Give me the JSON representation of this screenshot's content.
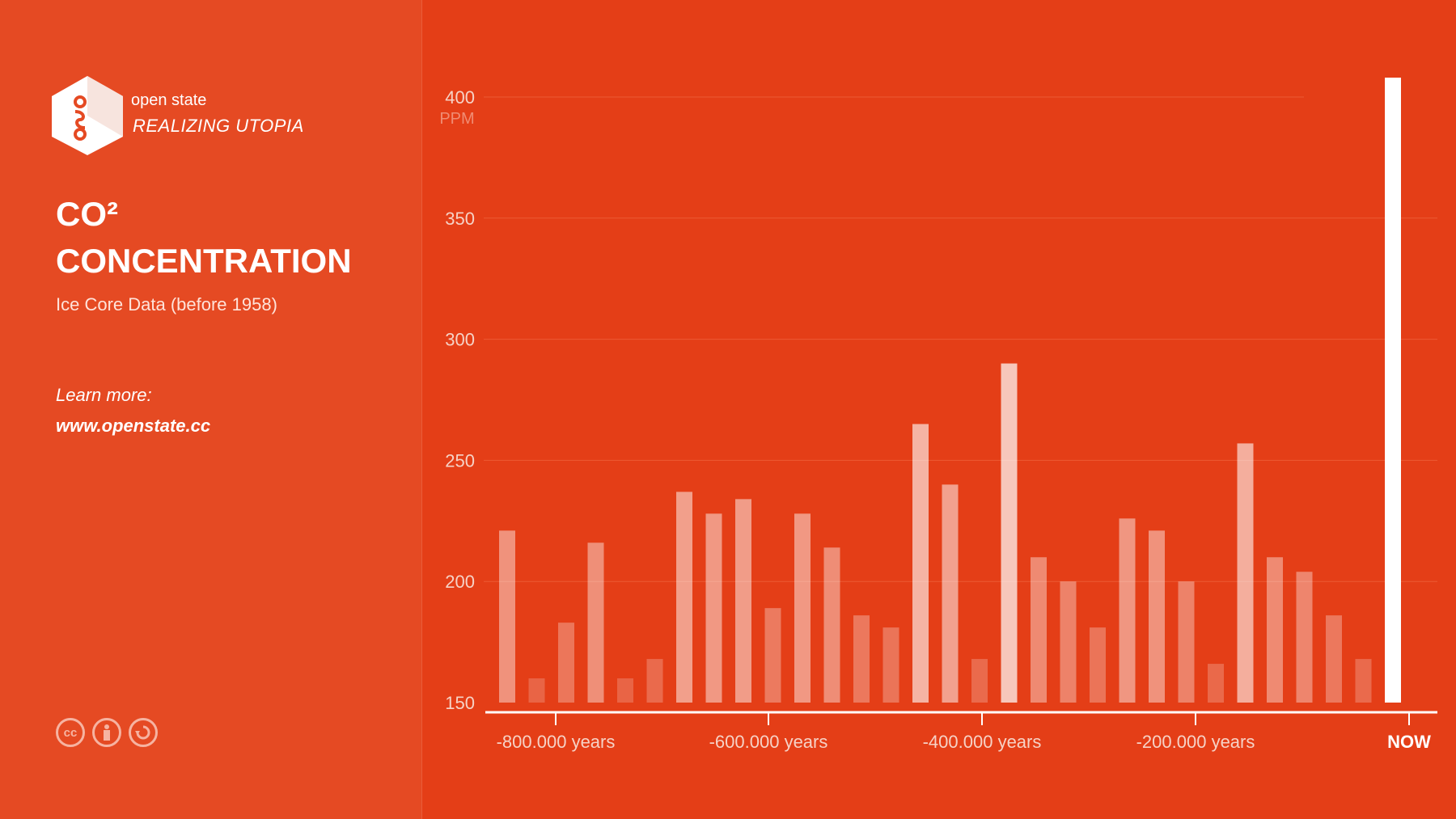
{
  "brand": {
    "name": "open state",
    "tagline": "REALIZING UTOPIA",
    "logo_icon": "open-state-hexagon-icon"
  },
  "sidebar": {
    "title_line1": "CO²",
    "title_line2": "CONCENTRATION",
    "subtitle": "Ice Core Data (before 1958)",
    "learn_more": "Learn more:",
    "url": "www.openstate.cc",
    "license_icons": [
      "cc-icon",
      "attribution-icon",
      "share-alike-icon"
    ],
    "license_labels": [
      "cc"
    ]
  },
  "colors": {
    "background": "#e43e17",
    "sidebar": "#e54a23",
    "bar_highlight": "#ffffff"
  },
  "chart_data": {
    "type": "bar",
    "title": "CO² CONCENTRATION",
    "subtitle": "Ice Core Data (before 1958)",
    "y_unit": "PPM",
    "ylim": [
      150,
      410
    ],
    "y_ticks": [
      150,
      200,
      250,
      300,
      350,
      400
    ],
    "x_ticks": [
      "-800.000 years",
      "-600.000 years",
      "-400.000 years",
      "-200.000 years",
      "NOW"
    ],
    "grid": true,
    "values": [
      221,
      160,
      183,
      216,
      160,
      168,
      237,
      228,
      234,
      189,
      228,
      214,
      186,
      181,
      265,
      240,
      168,
      290,
      210,
      200,
      181,
      226,
      221,
      200,
      166,
      257,
      210,
      204,
      186,
      168,
      408
    ]
  }
}
